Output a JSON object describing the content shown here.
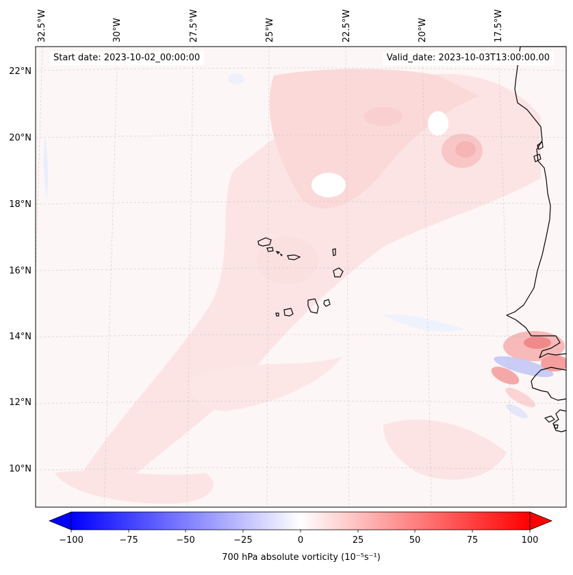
{
  "map": {
    "start_date_label": "Start date: 2023-10-02_00:00:00",
    "valid_date_label": "Valid_date: 2023-10-03T13:00:00.00",
    "lon_labels": [
      "32.5°W",
      "30°W",
      "27.5°W",
      "25°W",
      "22.5°W",
      "20°W",
      "17.5°W"
    ],
    "lat_labels": [
      "22°N",
      "20°N",
      "18°N",
      "16°N",
      "14°N",
      "12°N",
      "10°N"
    ],
    "features": [
      "Cape Verde islands",
      "West African coastline (Mauritania / Senegal / Gambia / Guinea-Bissau)"
    ]
  },
  "colorbar": {
    "label": "700 hPa absolute vorticity (10⁻⁵s⁻¹)",
    "ticks": [
      "−100",
      "−75",
      "−50",
      "−25",
      "0",
      "25",
      "50",
      "75",
      "100"
    ],
    "min": -100,
    "max": 100,
    "colormap": "bwr",
    "color_low": "#0000ff",
    "color_mid": "#ffffff",
    "color_high": "#ff0000"
  }
}
